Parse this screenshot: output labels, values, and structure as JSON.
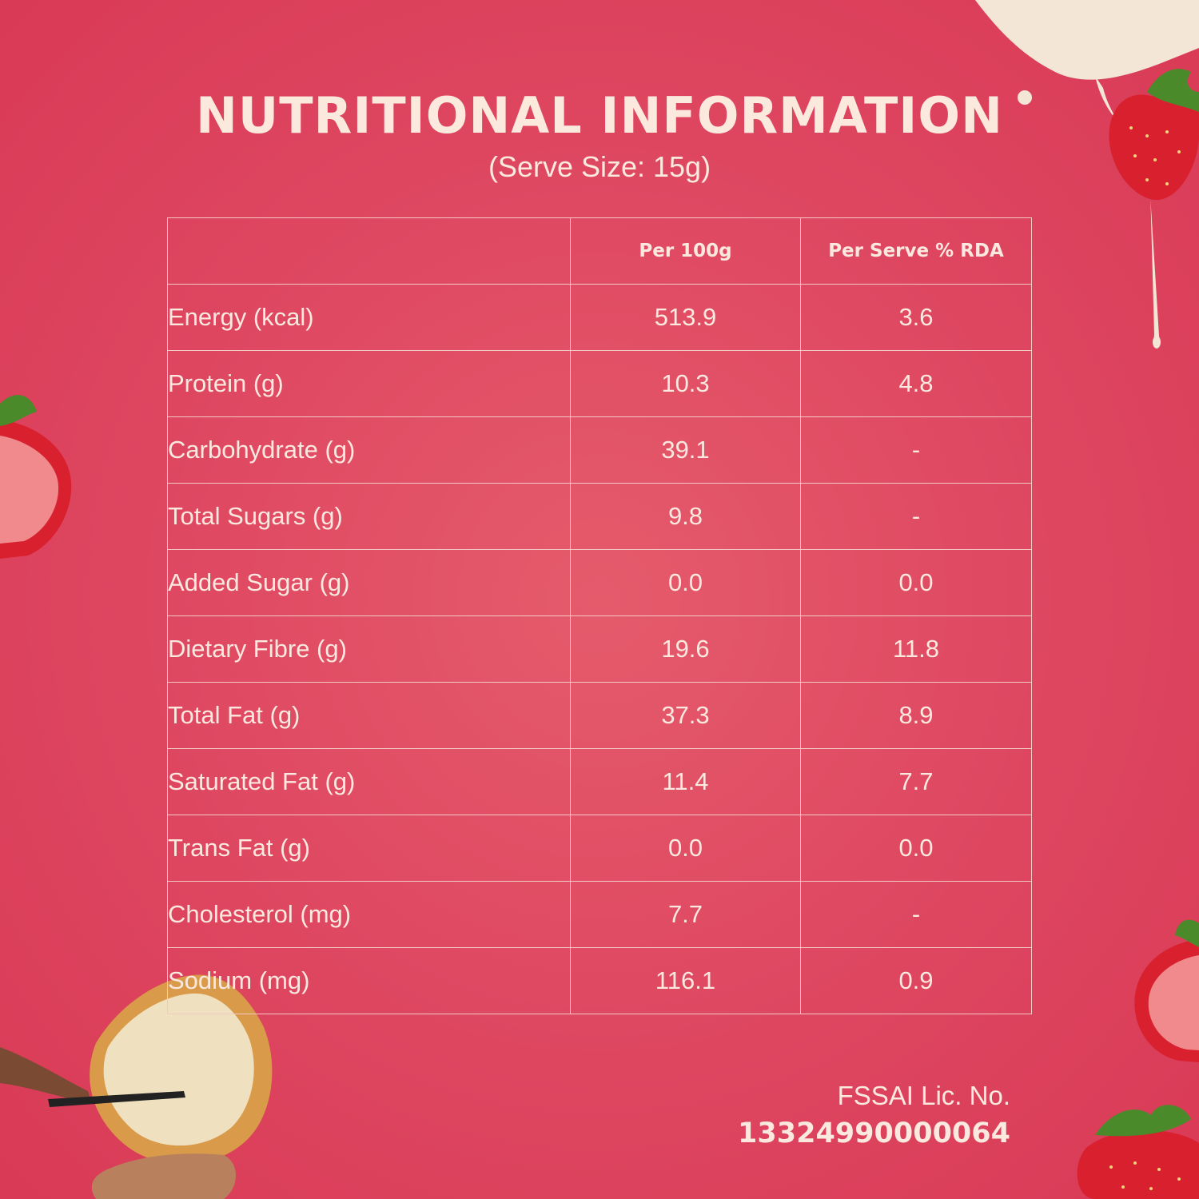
{
  "header": {
    "title": "NUTRITIONAL INFORMATION",
    "subtitle": "(Serve Size: 15g)"
  },
  "table": {
    "columns": [
      "",
      "Per 100g",
      "Per Serve % RDA"
    ],
    "rows": [
      {
        "nutrient": "Energy (kcal)",
        "per_100g": "513.9",
        "per_serve_rda": "3.6"
      },
      {
        "nutrient": "Protein (g)",
        "per_100g": "10.3",
        "per_serve_rda": "4.8"
      },
      {
        "nutrient": "Carbohydrate (g)",
        "per_100g": "39.1",
        "per_serve_rda": "-"
      },
      {
        "nutrient": "Total Sugars (g)",
        "per_100g": "9.8",
        "per_serve_rda": "-"
      },
      {
        "nutrient": "Added Sugar (g)",
        "per_100g": "0.0",
        "per_serve_rda": "0.0"
      },
      {
        "nutrient": "Dietary Fibre (g)",
        "per_100g": "19.6",
        "per_serve_rda": "11.8"
      },
      {
        "nutrient": "Total Fat (g)",
        "per_100g": "37.3",
        "per_serve_rda": "8.9"
      },
      {
        "nutrient": "Saturated Fat (g)",
        "per_100g": "11.4",
        "per_serve_rda": "7.7"
      },
      {
        "nutrient": "Trans Fat (g)",
        "per_100g": "0.0",
        "per_serve_rda": "0.0"
      },
      {
        "nutrient": "Cholesterol (mg)",
        "per_100g": "7.7",
        "per_serve_rda": "-"
      },
      {
        "nutrient": "Sodium (mg)",
        "per_100g": "116.1",
        "per_serve_rda": "0.9"
      }
    ]
  },
  "footer": {
    "fssai_label": "FSSAI Lic. No.",
    "fssai_number": "13324990000064"
  },
  "colors": {
    "background": "#de4660",
    "text": "#fbe9df",
    "table_border": "#f3c9c4",
    "strawberry": "#d8202e",
    "cream": "#f4e6d6"
  },
  "decorations": [
    "strawberry-icon",
    "cream-splash-icon",
    "toast-hand-icon"
  ]
}
